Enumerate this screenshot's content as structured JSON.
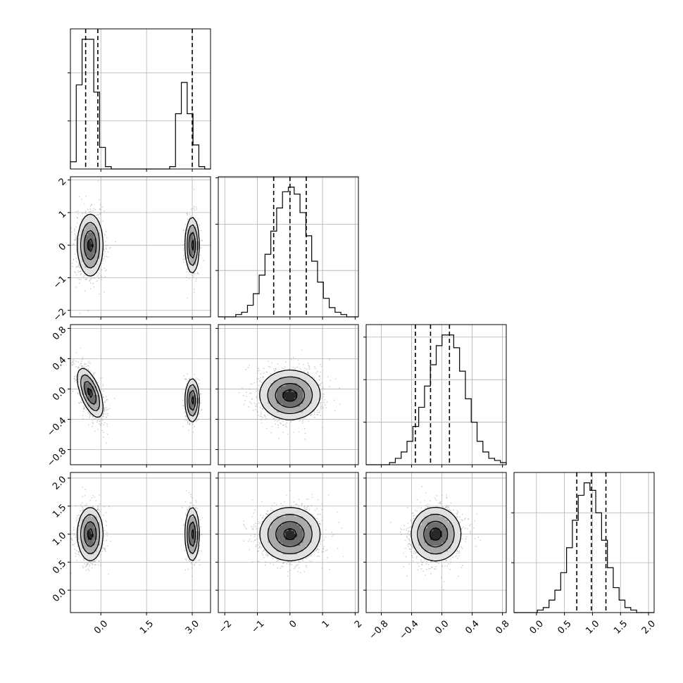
{
  "chart_data": {
    "type": "corner",
    "parameters": [
      {
        "range": [
          -1.0,
          3.6
        ],
        "ticks": [
          0.0,
          1.5,
          3.0
        ],
        "tick_labels": [
          "0.0",
          "1.5",
          "3.0"
        ],
        "quantiles": [
          -0.5,
          -0.1,
          3.0
        ],
        "hist": [
          3,
          35,
          54,
          54,
          32,
          9,
          1,
          0,
          0,
          0,
          0,
          0,
          0,
          0,
          0,
          0,
          0,
          1,
          23,
          36,
          23,
          10,
          1,
          0
        ]
      },
      {
        "range": [
          -2.2,
          2.1
        ],
        "ticks": [
          -2,
          -1,
          0,
          1,
          2
        ],
        "tick_labels": [
          "−2",
          "−1",
          "0",
          "1",
          "2"
        ],
        "quantiles": [
          -0.5,
          0.0,
          0.5
        ],
        "hist": [
          0,
          0,
          0,
          1,
          2,
          5,
          10,
          18,
          27,
          37,
          47,
          54,
          56,
          53,
          45,
          35,
          24,
          15,
          8,
          4,
          2,
          1,
          0,
          0
        ]
      },
      {
        "range": [
          -1.0,
          0.85
        ],
        "ticks": [
          -0.8,
          -0.4,
          0.0,
          0.4,
          0.8
        ],
        "tick_labels": [
          "−0.8",
          "−0.4",
          "0.0",
          "0.4",
          "0.8"
        ],
        "quantiles": [
          -0.35,
          -0.15,
          0.1
        ],
        "hist": [
          0,
          0,
          0,
          0,
          1,
          3,
          6,
          11,
          18,
          27,
          37,
          47,
          56,
          61,
          61,
          55,
          44,
          31,
          20,
          11,
          6,
          3,
          2,
          1
        ]
      },
      {
        "range": [
          -0.4,
          2.1
        ],
        "ticks": [
          0.0,
          0.5,
          1.0,
          1.5,
          2.0
        ],
        "tick_labels": [
          "0.0",
          "0.5",
          "1.0",
          "1.5",
          "2.0"
        ],
        "quantiles": [
          0.72,
          0.98,
          1.24
        ],
        "hist": [
          0,
          0,
          0,
          0,
          1,
          2,
          5,
          9,
          16,
          26,
          37,
          47,
          52,
          49,
          40,
          29,
          18,
          10,
          5,
          2,
          1,
          0,
          0,
          0
        ]
      }
    ],
    "modes": [
      {
        "weight": 0.72,
        "mean": [
          -0.35,
          0.0,
          -0.05,
          1.0
        ],
        "sd": [
          0.22,
          0.5,
          0.17,
          0.25
        ],
        "corr_0_2": -0.6
      },
      {
        "weight": 0.28,
        "mean": [
          3.0,
          0.0,
          -0.15,
          1.0
        ],
        "sd": [
          0.12,
          0.45,
          0.15,
          0.25
        ],
        "corr_0_2": 0.0
      }
    ],
    "sample_points_per_panel": 1400,
    "contour_levels": 4,
    "grid": true,
    "title": "",
    "xlabel": "",
    "ylabel": ""
  }
}
